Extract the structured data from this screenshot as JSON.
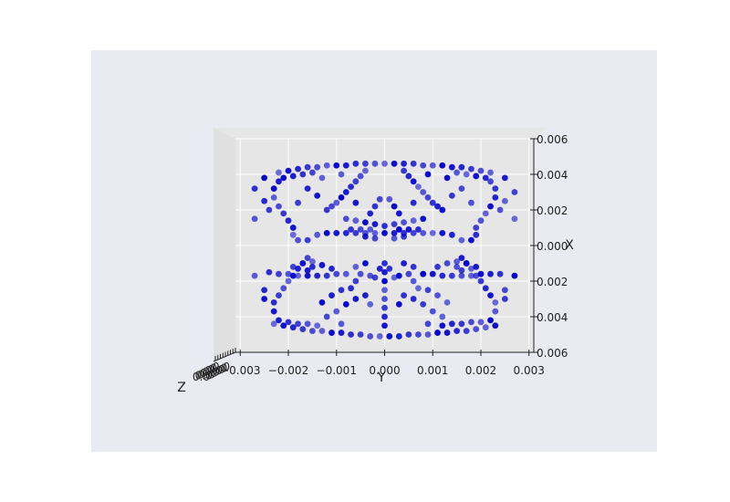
{
  "chart_data": {
    "type": "scatter",
    "projection": "3d",
    "view": "looking down the Z axis",
    "xlabel": "Y",
    "ylabel": "X",
    "zlabel": "Z",
    "x_ticks": [
      "−0.003",
      "−0.002",
      "−0.001",
      "0.000",
      "0.001",
      "0.002",
      "0.003"
    ],
    "y_ticks": [
      "0.006",
      "0.004",
      "0.002",
      "0.000",
      "0.002",
      "0.004",
      "0.006"
    ],
    "z_ticks": [
      "0.0",
      "0.0",
      "0.0",
      "0.0",
      "0.0",
      "0.0",
      "0.0",
      "0.0",
      "0.0"
    ],
    "xlim": [
      -0.0031,
      0.0031
    ],
    "ylim": [
      -0.006,
      0.006
    ],
    "marker_color": "#0000cc",
    "background": "#eaeaf2",
    "pane_color": "#e5e5e5",
    "grid": true,
    "series": [
      {
        "values": [
          [
            -0.0023,
            0.0044
          ],
          [
            -0.0021,
            0.0045
          ],
          [
            -0.0019,
            0.0046
          ],
          [
            -0.0017,
            0.0047
          ],
          [
            -0.0015,
            0.0048
          ],
          [
            -0.0013,
            0.0048
          ],
          [
            -0.0011,
            0.0049
          ],
          [
            -0.0009,
            0.0049
          ],
          [
            -0.0007,
            0.005
          ],
          [
            -0.0005,
            0.005
          ],
          [
            -0.0003,
            0.0051
          ],
          [
            -0.0001,
            0.0051
          ],
          [
            0.0001,
            0.0051
          ],
          [
            0.0003,
            0.0051
          ],
          [
            0.0005,
            0.005
          ],
          [
            0.0007,
            0.005
          ],
          [
            0.0009,
            0.005
          ],
          [
            0.0011,
            0.0049
          ],
          [
            0.0013,
            0.0049
          ],
          [
            0.0015,
            0.0048
          ],
          [
            0.0017,
            0.0048
          ],
          [
            0.0019,
            0.0047
          ],
          [
            0.0021,
            0.0046
          ],
          [
            0.0023,
            0.0045
          ],
          [
            -0.0022,
            0.0042
          ],
          [
            -0.002,
            0.0043
          ],
          [
            -0.0018,
            0.0044
          ],
          [
            -0.0016,
            0.0044
          ],
          [
            -0.0014,
            0.0045
          ],
          [
            0.0012,
            0.0045
          ],
          [
            0.0014,
            0.0044
          ],
          [
            0.0016,
            0.0044
          ],
          [
            0.0018,
            0.0043
          ],
          [
            0.002,
            0.0043
          ],
          [
            0.0022,
            0.0042
          ],
          [
            -0.0023,
            0.0037
          ],
          [
            -0.0023,
            0.0032
          ],
          [
            -0.0022,
            0.0028
          ],
          [
            -0.0021,
            0.0024
          ],
          [
            -0.002,
            0.002
          ],
          [
            -0.0019,
            0.0017
          ],
          [
            -0.0018,
            0.0013
          ],
          [
            -0.0017,
            0.001
          ],
          [
            -0.0016,
            0.0007
          ],
          [
            0.0023,
            0.0037
          ],
          [
            0.0023,
            0.0032
          ],
          [
            0.0022,
            0.0028
          ],
          [
            0.0021,
            0.0024
          ],
          [
            0.002,
            0.002
          ],
          [
            0.0019,
            0.0017
          ],
          [
            0.0018,
            0.0013
          ],
          [
            0.0017,
            0.001
          ],
          [
            0.0016,
            0.0007
          ],
          [
            -0.0024,
            0.0015
          ],
          [
            -0.0022,
            0.0016
          ],
          [
            -0.002,
            0.0016
          ],
          [
            -0.0018,
            0.0017
          ],
          [
            -0.0016,
            0.0017
          ],
          [
            -0.0014,
            0.0017
          ],
          [
            -0.0012,
            0.0017
          ],
          [
            -0.001,
            0.0016
          ],
          [
            -0.0008,
            0.0016
          ],
          [
            0.0008,
            0.0016
          ],
          [
            0.001,
            0.0016
          ],
          [
            0.0012,
            0.0017
          ],
          [
            0.0014,
            0.0017
          ],
          [
            0.0016,
            0.0017
          ],
          [
            0.0018,
            0.0017
          ],
          [
            0.002,
            0.0016
          ],
          [
            0.0022,
            0.0016
          ],
          [
            0.0024,
            0.0016
          ],
          [
            -0.0019,
            0.0012
          ],
          [
            -0.0017,
            0.001
          ],
          [
            -0.0015,
            0.0009
          ],
          [
            -0.0013,
            0.0011
          ],
          [
            -0.0011,
            0.0013
          ],
          [
            0.0011,
            0.0012
          ],
          [
            0.0013,
            0.001
          ],
          [
            0.0015,
            0.0009
          ],
          [
            0.0017,
            0.001
          ],
          [
            0.0019,
            0.0012
          ],
          [
            -0.0007,
            0.0024
          ],
          [
            -0.0006,
            0.002
          ],
          [
            -0.0005,
            0.0016
          ],
          [
            -0.0006,
            0.0012
          ],
          [
            -0.0004,
            0.001
          ],
          [
            0.0004,
            0.001
          ],
          [
            0.0006,
            0.0012
          ],
          [
            0.0005,
            0.0016
          ],
          [
            0.0006,
            0.002
          ],
          [
            0.0007,
            0.0024
          ],
          [
            0.0,
            0.0045
          ],
          [
            0.0,
            0.004
          ],
          [
            0.0,
            0.0035
          ],
          [
            0.0,
            0.003
          ],
          [
            0.0,
            0.0025
          ],
          [
            0.0,
            0.002
          ],
          [
            0.0,
            0.0015
          ],
          [
            0.0,
            0.001
          ],
          [
            -0.0002,
            0.0018
          ],
          [
            -0.0003,
            0.0017
          ],
          [
            0.0002,
            0.0018
          ],
          [
            0.0003,
            0.0017
          ],
          [
            -0.0001,
            0.0013
          ],
          [
            0.0001,
            0.0013
          ],
          [
            -0.0012,
            0.004
          ],
          [
            -0.001,
            0.0037
          ],
          [
            -0.0008,
            0.0033
          ],
          [
            -0.0006,
            0.003
          ],
          [
            0.0006,
            0.003
          ],
          [
            0.0008,
            0.0033
          ],
          [
            0.001,
            0.0037
          ],
          [
            0.0012,
            0.004
          ],
          [
            -0.0013,
            0.0032
          ],
          [
            -0.0011,
            0.0028
          ],
          [
            -0.0009,
            0.0025
          ],
          [
            0.0009,
            0.0025
          ],
          [
            0.0011,
            0.0028
          ],
          [
            0.0013,
            0.0032
          ],
          [
            -0.0025,
            0.003
          ],
          [
            -0.0025,
            0.0025
          ],
          [
            0.0025,
            0.003
          ],
          [
            0.0025,
            0.0025
          ],
          [
            -0.0027,
            0.0017
          ],
          [
            0.0027,
            0.0017
          ],
          [
            -0.0016,
            0.0014
          ],
          [
            -0.0015,
            0.0012
          ],
          [
            0.0016,
            0.0014
          ],
          [
            0.0015,
            0.0012
          ],
          [
            -0.0003,
            0.0033
          ],
          [
            0.0003,
            0.0033
          ],
          [
            -0.0004,
            0.0028
          ],
          [
            0.0004,
            0.0028
          ],
          [
            0.0009,
            0.0044
          ],
          [
            -0.0009,
            0.0044
          ],
          [
            -0.0019,
            -0.0006
          ],
          [
            -0.0019,
            -0.001
          ],
          [
            -0.002,
            -0.0014
          ],
          [
            -0.0021,
            -0.0018
          ],
          [
            -0.0022,
            -0.0022
          ],
          [
            -0.0023,
            -0.0027
          ],
          [
            -0.0023,
            -0.0032
          ],
          [
            -0.0022,
            -0.0036
          ],
          [
            0.0019,
            -0.0006
          ],
          [
            0.0019,
            -0.001
          ],
          [
            0.002,
            -0.0014
          ],
          [
            0.0021,
            -0.0018
          ],
          [
            0.0022,
            -0.0022
          ],
          [
            0.0023,
            -0.0027
          ],
          [
            0.0023,
            -0.0032
          ],
          [
            0.0022,
            -0.0036
          ],
          [
            -0.0014,
            -0.0006
          ],
          [
            -0.0012,
            -0.0007
          ],
          [
            -0.001,
            -0.0007
          ],
          [
            -0.0008,
            -0.0007
          ],
          [
            -0.0006,
            -0.0007
          ],
          [
            -0.0004,
            -0.0007
          ],
          [
            -0.0002,
            -0.0007
          ],
          [
            0.0,
            -0.0007
          ],
          [
            0.0002,
            -0.0007
          ],
          [
            0.0004,
            -0.0007
          ],
          [
            0.0006,
            -0.0007
          ],
          [
            0.0008,
            -0.0007
          ],
          [
            0.001,
            -0.0007
          ],
          [
            0.0012,
            -0.0007
          ],
          [
            0.0014,
            -0.0006
          ],
          [
            -0.0007,
            -0.0009
          ],
          [
            -0.0005,
            -0.0009
          ],
          [
            -0.0003,
            -0.0009
          ],
          [
            0.0003,
            -0.0009
          ],
          [
            0.0005,
            -0.0009
          ],
          [
            0.0007,
            -0.0009
          ],
          [
            -0.0016,
            -0.0003
          ],
          [
            -0.0018,
            -0.0003
          ],
          [
            0.0016,
            -0.0003
          ],
          [
            0.0018,
            -0.0003
          ],
          [
            -0.0004,
            -0.0005
          ],
          [
            0.0004,
            -0.0005
          ],
          [
            -0.0002,
            -0.0004
          ],
          [
            0.0002,
            -0.0004
          ],
          [
            -0.0022,
            -0.0041
          ],
          [
            -0.002,
            -0.0042
          ],
          [
            -0.0018,
            -0.0043
          ],
          [
            -0.0016,
            -0.0044
          ],
          [
            -0.0014,
            -0.0044
          ],
          [
            -0.0012,
            -0.0045
          ],
          [
            -0.001,
            -0.0045
          ],
          [
            -0.0008,
            -0.0045
          ],
          [
            -0.0006,
            -0.0046
          ],
          [
            -0.0004,
            -0.0046
          ],
          [
            -0.0002,
            -0.0046
          ],
          [
            0.0,
            -0.0046
          ],
          [
            0.0002,
            -0.0046
          ],
          [
            0.0004,
            -0.0046
          ],
          [
            0.0006,
            -0.0046
          ],
          [
            0.0008,
            -0.0045
          ],
          [
            0.001,
            -0.0045
          ],
          [
            0.0012,
            -0.0045
          ],
          [
            0.0014,
            -0.0044
          ],
          [
            0.0016,
            -0.0044
          ],
          [
            0.0018,
            -0.0043
          ],
          [
            0.002,
            -0.0042
          ],
          [
            0.0022,
            -0.0041
          ],
          [
            -0.0021,
            -0.0038
          ],
          [
            -0.0019,
            -0.0039
          ],
          [
            -0.0017,
            -0.004
          ],
          [
            -0.0015,
            -0.0041
          ],
          [
            0.0015,
            -0.0041
          ],
          [
            0.0017,
            -0.004
          ],
          [
            0.0019,
            -0.0039
          ],
          [
            0.0021,
            -0.0038
          ],
          [
            -0.0012,
            -0.002
          ],
          [
            -0.0011,
            -0.0022
          ],
          [
            -0.001,
            -0.0024
          ],
          [
            -0.0009,
            -0.0027
          ],
          [
            -0.0008,
            -0.003
          ],
          [
            -0.0007,
            -0.0033
          ],
          [
            -0.0006,
            -0.0036
          ],
          [
            -0.0005,
            -0.0039
          ],
          [
            -0.0004,
            -0.0042
          ],
          [
            0.0012,
            -0.002
          ],
          [
            0.0011,
            -0.0022
          ],
          [
            0.001,
            -0.0024
          ],
          [
            0.0009,
            -0.0027
          ],
          [
            0.0008,
            -0.003
          ],
          [
            0.0007,
            -0.0033
          ],
          [
            0.0006,
            -0.0036
          ],
          [
            0.0005,
            -0.0039
          ],
          [
            0.0004,
            -0.0042
          ],
          [
            -0.0008,
            -0.0015
          ],
          [
            -0.0006,
            -0.0014
          ],
          [
            -0.0004,
            -0.0013
          ],
          [
            -0.0002,
            -0.0012
          ],
          [
            0.0,
            -0.0011
          ],
          [
            0.0002,
            -0.0012
          ],
          [
            0.0004,
            -0.0013
          ],
          [
            0.0006,
            -0.0014
          ],
          [
            0.0008,
            -0.0015
          ],
          [
            -0.0003,
            -0.0018
          ],
          [
            -0.0002,
            -0.0022
          ],
          [
            -0.0001,
            -0.0026
          ],
          [
            0.0001,
            -0.0026
          ],
          [
            0.0002,
            -0.0022
          ],
          [
            0.0003,
            -0.0018
          ],
          [
            -0.0025,
            -0.0025
          ],
          [
            -0.0024,
            -0.002
          ],
          [
            0.0024,
            -0.002
          ],
          [
            0.0025,
            -0.0025
          ],
          [
            -0.0025,
            -0.0038
          ],
          [
            0.0025,
            -0.0038
          ],
          [
            -0.0027,
            -0.0032
          ],
          [
            0.0027,
            -0.003
          ],
          [
            -0.0027,
            -0.0015
          ],
          [
            0.0027,
            -0.0015
          ],
          [
            -0.0014,
            -0.0028
          ],
          [
            -0.0016,
            -0.0032
          ],
          [
            0.0014,
            -0.0028
          ],
          [
            0.0016,
            -0.0032
          ],
          [
            -0.0009,
            -0.004
          ],
          [
            0.0009,
            -0.004
          ],
          [
            -0.0006,
            -0.0024
          ],
          [
            0.0006,
            -0.0024
          ],
          [
            -0.0018,
            -0.0024
          ],
          [
            0.0018,
            -0.0024
          ],
          [
            -0.0013,
            -0.0038
          ],
          [
            0.0013,
            -0.0038
          ]
        ]
      }
    ]
  }
}
